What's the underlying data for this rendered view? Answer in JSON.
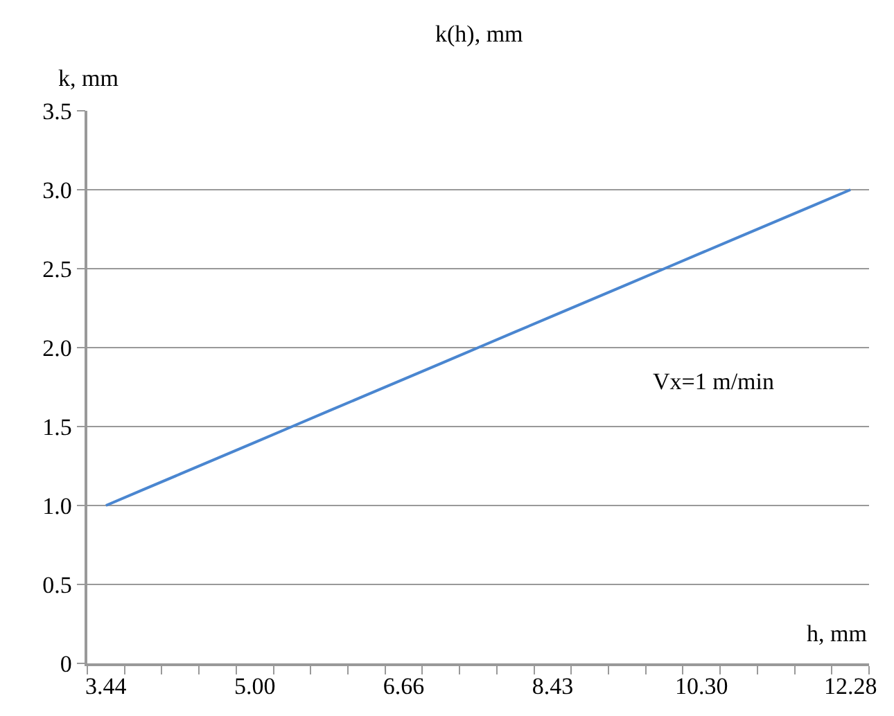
{
  "chart_data": {
    "type": "line",
    "title": "k(h), mm",
    "xlabel": "h, mm",
    "ylabel": "k, mm",
    "categories": [
      "3.44",
      null,
      null,
      null,
      "5.00",
      null,
      null,
      null,
      "6.66",
      null,
      null,
      null,
      "8.43",
      null,
      null,
      null,
      "10.30",
      null,
      null,
      null,
      "12.28"
    ],
    "series": [
      {
        "color": "#4a86d0",
        "values": [
          1.0,
          1.1,
          1.2,
          1.3,
          1.4,
          1.5,
          1.6,
          1.7,
          1.8,
          1.9,
          2.0,
          2.1,
          2.2,
          2.3,
          2.4,
          2.5,
          2.6,
          2.7,
          2.8,
          2.9,
          3.0
        ]
      }
    ],
    "ylim": [
      0,
      3.5
    ],
    "yticks": [
      0,
      {
        "value": 0.5,
        "label": "0.5"
      },
      {
        "value": 1,
        "label": "1.0"
      },
      {
        "value": 1.5,
        "label": "1.5"
      },
      {
        "value": 2,
        "label": "2.0"
      },
      {
        "value": 2.5,
        "label": "2.5"
      },
      {
        "value": 3,
        "label": "3.0"
      },
      {
        "value": 3.5,
        "label": "3.5"
      }
    ],
    "annotations": [
      "Vx=1 m/min"
    ],
    "grid": "y",
    "marker": "none",
    "line_style": "solid"
  }
}
